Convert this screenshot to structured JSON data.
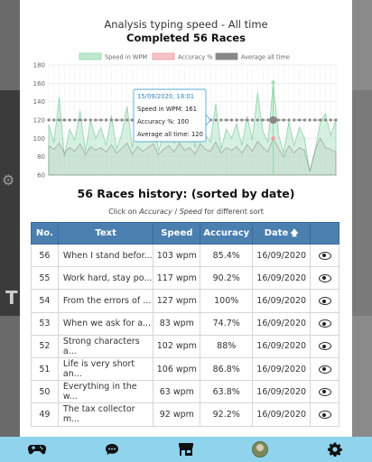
{
  "chart_data": {
    "type": "line",
    "title": "Analysis typing speed - All time",
    "subtitle": "Completed 56 Races",
    "legend": [
      "Speed in WPM",
      "Accuracy %",
      "Average all time"
    ],
    "legend_position": "top",
    "ylim": [
      60,
      180
    ],
    "yticks": [
      60,
      80,
      100,
      120,
      140,
      160,
      180
    ],
    "grid": true,
    "series": [
      {
        "name": "Speed in WPM",
        "color": "#bfe8cf",
        "values": [
          115,
          95,
          145,
          80,
          110,
          98,
          130,
          85,
          120,
          100,
          112,
          92,
          125,
          88,
          105,
          135,
          90,
          118,
          98,
          108,
          128,
          86,
          104,
          122,
          94,
          132,
          100,
          114,
          90,
          126,
          104,
          96,
          138,
          88,
          110,
          100,
          116,
          92,
          124,
          98,
          150,
          108,
          96,
          161,
          104,
          84,
          118,
          92,
          112,
          100,
          63,
          86,
          117,
          127,
          103,
          120
        ]
      },
      {
        "name": "Accuracy %",
        "color": "#f5c2c8",
        "values": [
          92,
          88,
          95,
          84,
          90,
          86,
          94,
          82,
          91,
          87,
          90,
          85,
          93,
          84,
          89,
          95,
          83,
          91,
          86,
          90,
          94,
          82,
          88,
          92,
          85,
          95,
          87,
          90,
          83,
          94,
          88,
          86,
          96,
          84,
          90,
          87,
          91,
          84,
          93,
          86,
          97,
          90,
          85,
          100,
          89,
          80,
          92,
          84,
          90,
          87,
          64,
          87,
          100,
          90,
          88,
          85
        ]
      },
      {
        "name": "Average all time",
        "color": "#888888",
        "values": [
          120,
          120,
          120,
          120,
          120,
          120,
          120,
          120,
          120,
          120,
          120,
          120,
          120,
          120,
          120,
          120,
          120,
          120,
          120,
          120,
          120,
          120,
          120,
          120,
          120,
          120,
          120,
          120,
          120,
          120,
          120,
          120,
          120,
          120,
          120,
          120,
          120,
          120,
          120,
          120,
          120,
          120,
          120,
          120,
          120,
          120,
          120,
          120,
          120,
          120,
          120,
          120,
          120,
          120,
          120,
          120
        ]
      }
    ],
    "tooltip": {
      "index": 43,
      "date": "15/09/2020, 18:01",
      "speed": "Speed in WPM: 161",
      "accuracy": "Accuracy %: 100",
      "average": "Average all time: 120"
    }
  },
  "history": {
    "title": "56 Races history: (sorted by date)",
    "note_prefix": "Click on ",
    "note_accuracy": "Accuracy",
    "note_sep": " / ",
    "note_speed": "Speed",
    "note_suffix": " for different sort",
    "columns": {
      "no": "No.",
      "text": "Text",
      "speed": "Speed",
      "accuracy": "Accuracy",
      "date": "Date",
      "date_arrow": "🡅"
    },
    "rows": [
      {
        "no": "56",
        "text": "When I stand befor...",
        "speed": "103 wpm",
        "accuracy": "85.4%",
        "date": "16/09/2020"
      },
      {
        "no": "55",
        "text": "Work hard, stay po...",
        "speed": "117 wpm",
        "accuracy": "90.2%",
        "date": "16/09/2020"
      },
      {
        "no": "54",
        "text": "From the errors of ...",
        "speed": "127 wpm",
        "accuracy": "100%",
        "date": "16/09/2020"
      },
      {
        "no": "53",
        "text": "When we ask for a...",
        "speed": "83 wpm",
        "accuracy": "74.7%",
        "date": "16/09/2020"
      },
      {
        "no": "52",
        "text": "Strong characters a...",
        "speed": "102 wpm",
        "accuracy": "88%",
        "date": "16/09/2020"
      },
      {
        "no": "51",
        "text": "Life is very short an...",
        "speed": "106 wpm",
        "accuracy": "86.8%",
        "date": "16/09/2020"
      },
      {
        "no": "50",
        "text": "Everything in the w...",
        "speed": "63 wpm",
        "accuracy": "63.8%",
        "date": "16/09/2020"
      },
      {
        "no": "49",
        "text": "The tax collector m...",
        "speed": "92 wpm",
        "accuracy": "92.2%",
        "date": "16/09/2020"
      }
    ]
  },
  "nav": {
    "items": [
      "gamepad-icon",
      "chat-icon",
      "shop-icon",
      "avatar",
      "gear-icon"
    ]
  },
  "background": {
    "side_letter": "T"
  }
}
